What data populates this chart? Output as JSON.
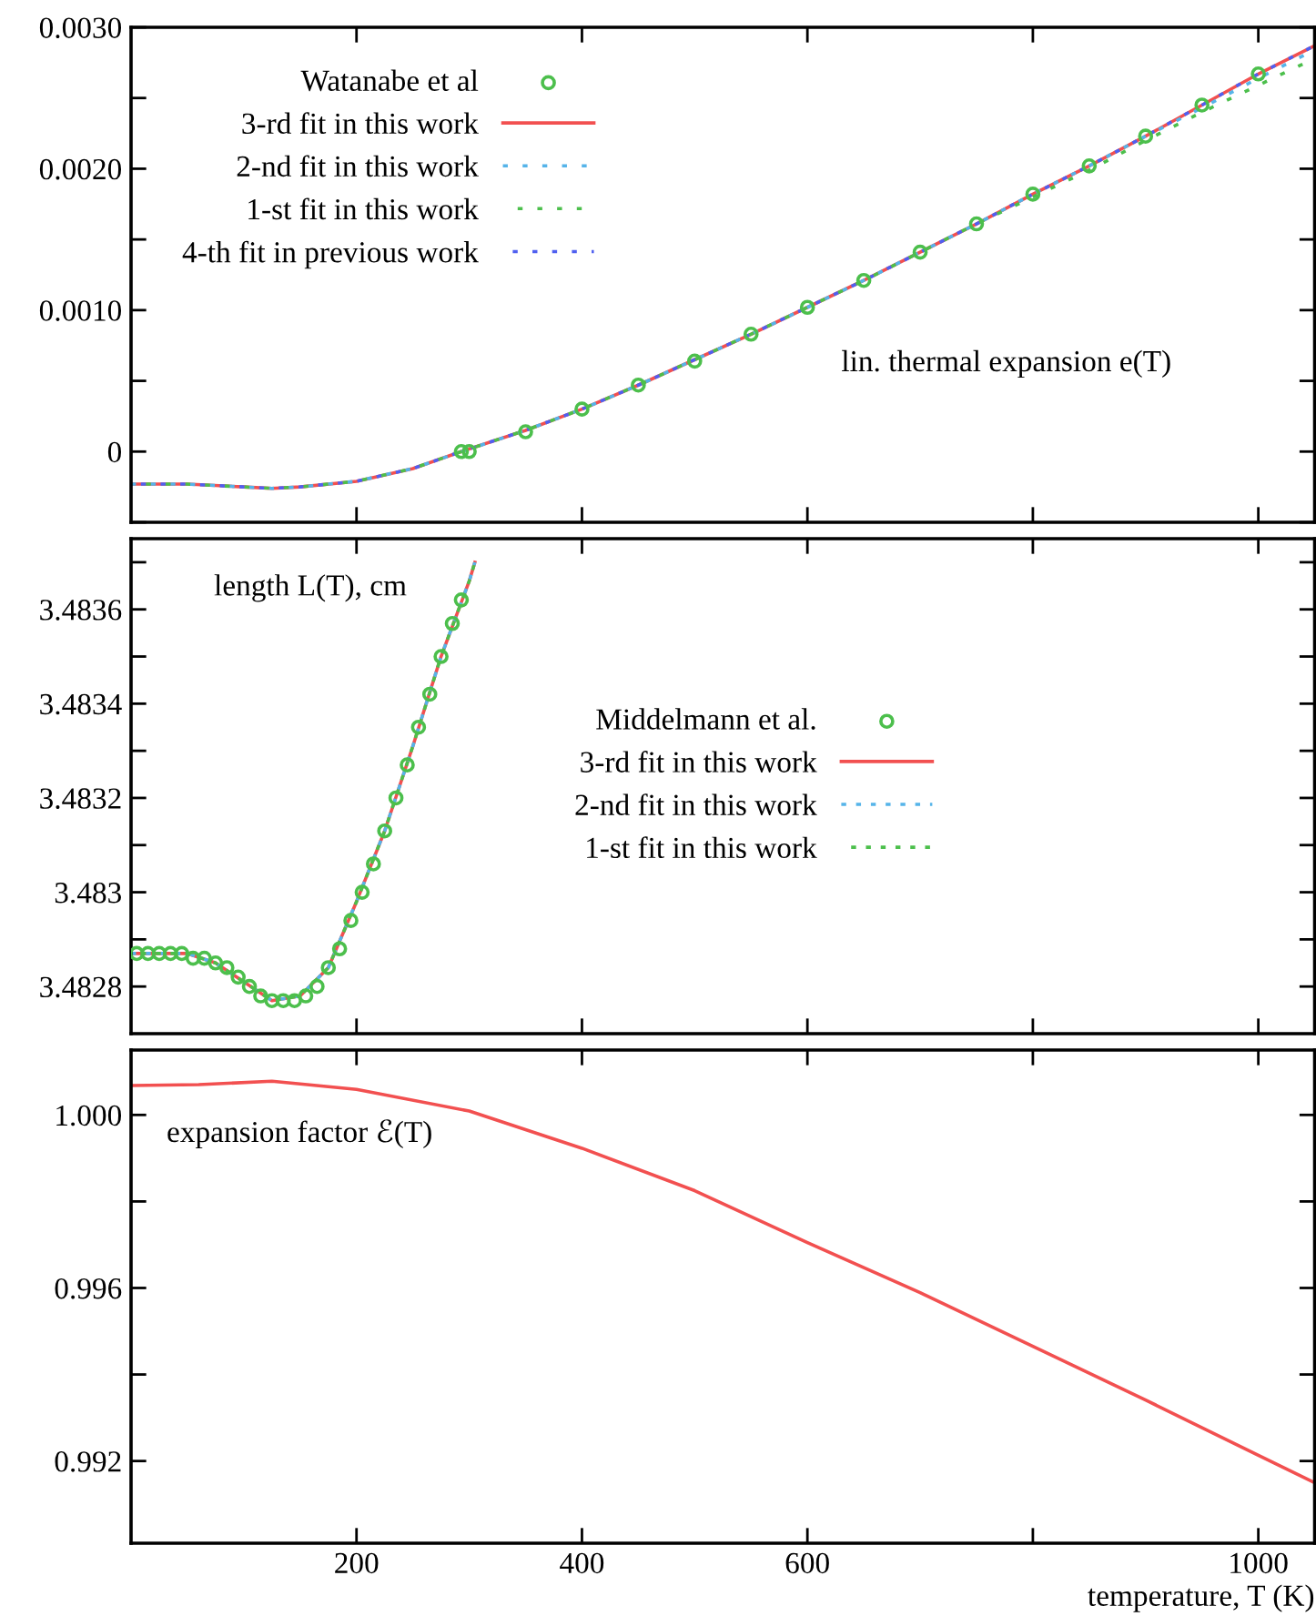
{
  "chart_data": [
    {
      "type": "line",
      "xlim": [
        0,
        1050
      ],
      "ylim": [
        -0.0005,
        0.003
      ],
      "tick_labels": "y",
      "grid": false,
      "legend": "top left",
      "annotations": [
        "lin. thermal expansion e(T)"
      ],
      "xticks": [
        {
          "value": 200,
          "label": null
        },
        {
          "value": 400,
          "label": null
        },
        {
          "value": 600,
          "label": null
        },
        {
          "value": 800,
          "label": null
        },
        {
          "value": 1000,
          "label": null
        }
      ],
      "yticks": [
        {
          "value": -0.0005,
          "label": null
        },
        0,
        {
          "value": 0.0005,
          "label": null
        },
        {
          "value": 0.001,
          "label": "0.0010"
        },
        {
          "value": 0.0015,
          "label": null
        },
        {
          "value": 0.002,
          "label": "0.0020"
        },
        {
          "value": 0.0025,
          "label": null
        },
        {
          "value": 0.003,
          "label": "0.0030"
        }
      ],
      "series": [
        {
          "name": "Watanabe et al",
          "type": "scatter",
          "marker": "circle",
          "color": "#4cbf4c",
          "x": [
            293,
            300,
            350,
            400,
            450,
            500,
            550,
            600,
            650,
            700,
            750,
            800,
            850,
            900,
            950,
            1000
          ],
          "values": [
            0.0,
            0.0,
            0.00014,
            0.0003,
            0.00047,
            0.00064,
            0.00083,
            0.00102,
            0.00121,
            0.00141,
            0.00161,
            0.00182,
            0.00202,
            0.00223,
            0.00245,
            0.00267
          ]
        },
        {
          "name": "3-rd fit in this work",
          "line_style": "solid",
          "color": "#f25050",
          "x": [
            0,
            50,
            100,
            125,
            150,
            200,
            250,
            293,
            350,
            400,
            450,
            500,
            550,
            600,
            650,
            700,
            750,
            800,
            850,
            900,
            950,
            1000,
            1050
          ],
          "values": [
            -0.00023,
            -0.00023,
            -0.00025,
            -0.00026,
            -0.00025,
            -0.00021,
            -0.00012,
            0.0,
            0.00015,
            0.0003,
            0.00047,
            0.00065,
            0.00083,
            0.00102,
            0.00121,
            0.00141,
            0.00161,
            0.00182,
            0.00202,
            0.00223,
            0.00245,
            0.00267,
            0.00287
          ]
        },
        {
          "name": "2-nd fit in this work",
          "line_style": "dashed",
          "color": "#56b4e9",
          "x": [
            0,
            50,
            100,
            125,
            150,
            200,
            250,
            293,
            350,
            400,
            450,
            500,
            550,
            600,
            650,
            700,
            750,
            800,
            850,
            900,
            950,
            1000,
            1050
          ],
          "values": [
            -0.00023,
            -0.00023,
            -0.00025,
            -0.00026,
            -0.00025,
            -0.00021,
            -0.00012,
            0.0,
            0.00015,
            0.0003,
            0.00047,
            0.00065,
            0.00083,
            0.00102,
            0.00121,
            0.00141,
            0.00161,
            0.00182,
            0.00202,
            0.00223,
            0.00243,
            0.00264,
            0.00284
          ]
        },
        {
          "name": "1-st fit in this work",
          "line_style": "dashed",
          "color": "#4cbf4c",
          "x": [
            0,
            50,
            100,
            125,
            150,
            200,
            250,
            293,
            350,
            400,
            450,
            500,
            550,
            600,
            650,
            700,
            750,
            800,
            850,
            900,
            950,
            1000,
            1050
          ],
          "values": [
            -0.00023,
            -0.00023,
            -0.00025,
            -0.00026,
            -0.00025,
            -0.00021,
            -0.00012,
            0.0,
            0.00015,
            0.0003,
            0.00047,
            0.00065,
            0.00083,
            0.00102,
            0.00121,
            0.00141,
            0.00161,
            0.0018,
            0.00199,
            0.0022,
            0.0024,
            0.00259,
            0.00278
          ]
        },
        {
          "name": "4-th fit in previous work",
          "line_style": "dashed",
          "color": "#5060f0",
          "x": [
            0,
            50,
            100,
            125,
            150,
            200,
            250,
            293,
            350,
            400,
            450,
            500,
            550,
            600,
            650,
            700,
            750,
            800,
            850,
            900,
            950,
            1000,
            1050
          ],
          "values": [
            -0.00023,
            -0.00023,
            -0.00025,
            -0.00026,
            -0.00025,
            -0.00021,
            -0.00012,
            0.0,
            0.00015,
            0.0003,
            0.00047,
            0.00065,
            0.00083,
            0.00102,
            0.00121,
            0.00141,
            0.00161,
            0.00182,
            0.00202,
            0.00223,
            0.00245,
            0.00267,
            0.00287
          ]
        }
      ]
    },
    {
      "type": "line",
      "xlim": [
        0,
        1050
      ],
      "ylim": [
        3.4827,
        3.48375
      ],
      "tick_labels": "y",
      "grid": false,
      "legend": "right",
      "annotations": [
        "length L(T), cm"
      ],
      "xticks": [
        {
          "value": 200,
          "label": null
        },
        {
          "value": 400,
          "label": null
        },
        {
          "value": 600,
          "label": null
        },
        {
          "value": 800,
          "label": null
        },
        {
          "value": 1000,
          "label": null
        }
      ],
      "yticks": [
        3.4828,
        {
          "value": 3.4829,
          "label": null
        },
        3.483,
        {
          "value": 3.4831,
          "label": null
        },
        3.4832,
        {
          "value": 3.4833,
          "label": null
        },
        3.4834,
        {
          "value": 3.4835,
          "label": null
        },
        3.4836,
        {
          "value": 3.4837,
          "label": null
        }
      ],
      "series": [
        {
          "name": "Middelmann et al.",
          "type": "scatter",
          "marker": "circle",
          "color": "#4cbf4c",
          "x": [
            5,
            15,
            25,
            35,
            45,
            55,
            65,
            75,
            85,
            95,
            105,
            115,
            125,
            135,
            145,
            155,
            165,
            175,
            185,
            195,
            205,
            215,
            225,
            235,
            245,
            255,
            265,
            275,
            285,
            293
          ],
          "values": [
            3.48287,
            3.48287,
            3.48287,
            3.48287,
            3.48287,
            3.48286,
            3.48286,
            3.48285,
            3.48284,
            3.48282,
            3.4828,
            3.48278,
            3.48277,
            3.48277,
            3.48277,
            3.48278,
            3.4828,
            3.48284,
            3.48288,
            3.48294,
            3.483,
            3.48306,
            3.48313,
            3.4832,
            3.48327,
            3.48335,
            3.48342,
            3.4835,
            3.48357,
            3.48362
          ]
        },
        {
          "name": "3-rd fit in this work",
          "line_style": "solid",
          "color": "#f25050",
          "x": [
            0,
            25,
            50,
            75,
            100,
            125,
            150,
            175,
            200,
            225,
            250,
            275,
            300,
            305
          ],
          "values": [
            3.48287,
            3.48287,
            3.48287,
            3.48285,
            3.48281,
            3.48277,
            3.48278,
            3.48284,
            3.48298,
            3.48313,
            3.48331,
            3.4835,
            3.48366,
            3.4837
          ]
        },
        {
          "name": "2-nd fit in this work",
          "line_style": "dashed",
          "color": "#56b4e9",
          "x": [
            0,
            25,
            50,
            75,
            100,
            125,
            150,
            175,
            200,
            225,
            250,
            275,
            300,
            305
          ],
          "values": [
            3.48287,
            3.48287,
            3.48287,
            3.48285,
            3.48281,
            3.48277,
            3.48278,
            3.48284,
            3.48298,
            3.48313,
            3.48331,
            3.4835,
            3.48366,
            3.4837
          ]
        },
        {
          "name": "1-st fit in this work",
          "line_style": "dashed",
          "color": "#4cbf4c",
          "x": [
            0,
            25,
            50,
            75,
            100,
            125,
            150,
            175,
            200,
            225,
            250,
            275,
            300,
            305
          ],
          "values": [
            3.48287,
            3.48287,
            3.48287,
            3.48285,
            3.48281,
            3.48277,
            3.48278,
            3.48284,
            3.48298,
            3.48313,
            3.48331,
            3.4835,
            3.48366,
            3.4837
          ]
        }
      ]
    },
    {
      "type": "line",
      "xlim": [
        0,
        1050
      ],
      "ylim": [
        0.9901,
        1.0015
      ],
      "grid": false,
      "xlabel": "temperature, T (K)",
      "annotations": [
        "expansion factor ℰ(T)"
      ],
      "xticks": [
        200,
        400,
        600,
        {
          "value": 800,
          "label": null
        },
        1000
      ],
      "yticks": [
        {
          "value": 0.992,
          "label": "0.992"
        },
        {
          "value": 0.994,
          "label": null
        },
        {
          "value": 0.996,
          "label": "0.996"
        },
        {
          "value": 0.998,
          "label": null
        },
        {
          "value": 1.0,
          "label": "1.000"
        }
      ],
      "series": [
        {
          "line_style": "solid",
          "color": "#f25050",
          "x": [
            0,
            60,
            125,
            200,
            300,
            400,
            500,
            600,
            700,
            800,
            900,
            1000,
            1050
          ],
          "values": [
            1.00068,
            1.0007,
            1.00078,
            1.00059,
            1.00009,
            0.99923,
            0.99825,
            0.99705,
            0.99589,
            0.99465,
            0.99341,
            0.99213,
            0.9915
          ]
        }
      ]
    }
  ]
}
